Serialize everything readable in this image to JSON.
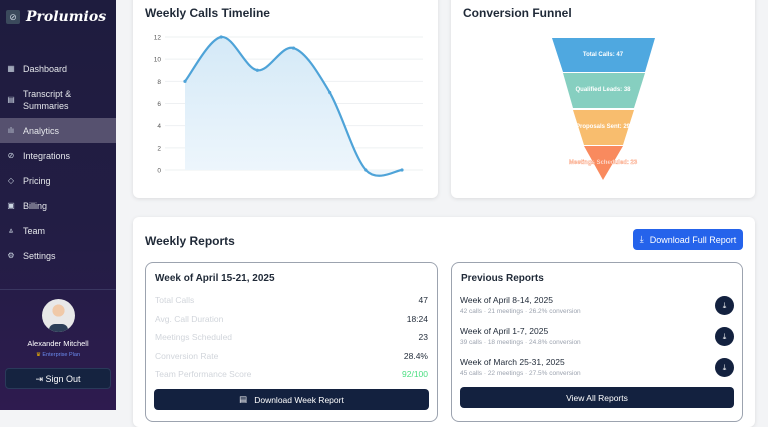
{
  "app": {
    "name": "Prolumios"
  },
  "sidebar": {
    "items": [
      {
        "label": "Dashboard",
        "icon": "grid-icon"
      },
      {
        "label": "Transcript & Summaries",
        "icon": "document-icon"
      },
      {
        "label": "Analytics",
        "icon": "bar-chart-icon",
        "active": true
      },
      {
        "label": "Integrations",
        "icon": "link-icon"
      },
      {
        "label": "Pricing",
        "icon": "tag-icon"
      },
      {
        "label": "Billing",
        "icon": "receipt-icon"
      },
      {
        "label": "Team",
        "icon": "users-icon"
      },
      {
        "label": "Settings",
        "icon": "gear-icon"
      }
    ],
    "user": {
      "name": "Alexander Mitchell",
      "plan": "Enterprise Plan"
    },
    "sign_out": "Sign Out"
  },
  "timeline": {
    "title": "Weekly Calls Timeline"
  },
  "funnel": {
    "title": "Conversion Funnel",
    "stages": [
      {
        "label": "Total Calls: 47",
        "color": "#4fa8e0"
      },
      {
        "label": "Qualified Leads: 38",
        "color": "#86cfc0"
      },
      {
        "label": "Proposals Sent: 29",
        "color": "#f8bd6e"
      },
      {
        "label": "Meetings Scheduled: 23",
        "color": "#f98a5e"
      }
    ]
  },
  "reports": {
    "title": "Weekly Reports",
    "download_full": "Download Full Report",
    "current": {
      "title": "Week of April 15-21, 2025",
      "metrics": [
        {
          "label": "Total Calls",
          "value": "47"
        },
        {
          "label": "Avg. Call Duration",
          "value": "18:24"
        },
        {
          "label": "Meetings Scheduled",
          "value": "23"
        },
        {
          "label": "Conversion Rate",
          "value": "28.4%"
        },
        {
          "label": "Team Performance Score",
          "value": "92/100",
          "color": "#4ade80"
        }
      ],
      "download": "Download Week Report"
    },
    "previous": {
      "title": "Previous Reports",
      "items": [
        {
          "title": "Week of April 8-14, 2025",
          "summary": "42 calls · 21 meetings · 26.2% conversion"
        },
        {
          "title": "Week of April 1-7, 2025",
          "summary": "39 calls · 18 meetings · 24.8% conversion"
        },
        {
          "title": "Week of March 25-31, 2025",
          "summary": "45 calls · 22 meetings · 27.5% conversion"
        }
      ],
      "view_all": "View All Reports"
    }
  },
  "chart_data": {
    "type": "area",
    "title": "Weekly Calls Timeline",
    "x": [
      1,
      2,
      3,
      4,
      5,
      6,
      7
    ],
    "values": [
      8,
      12,
      9,
      11,
      7,
      0,
      0
    ],
    "ylim": [
      0,
      12
    ],
    "yticks": [
      "0",
      "2",
      "4",
      "6",
      "8",
      "10",
      "12"
    ],
    "grid": true,
    "color": "#4ea3d8"
  }
}
